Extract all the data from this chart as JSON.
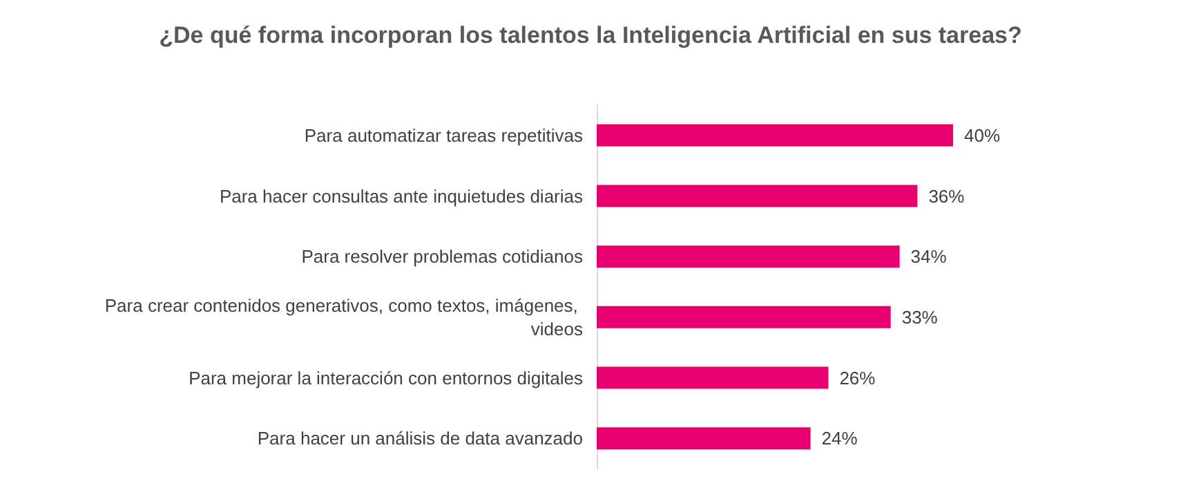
{
  "chart_data": {
    "type": "bar",
    "orientation": "horizontal",
    "title": "¿De qué forma incorporan los talentos la Inteligencia Artificial en sus tareas?",
    "categories": [
      "Para automatizar tareas repetitivas",
      "Para hacer consultas ante inquietudes diarias",
      "Para resolver problemas cotidianos",
      "Para crear contenidos generativos, como textos, imágenes, videos",
      "Para mejorar la interacción con entornos digitales",
      "Para hacer un análisis de data avanzado"
    ],
    "values": [
      40,
      36,
      34,
      33,
      26,
      24
    ],
    "value_labels": [
      "40%",
      "36%",
      "34%",
      "33%",
      "26%",
      "24%"
    ],
    "color": "#e8006f",
    "tick_labels": "y",
    "grid": false
  }
}
